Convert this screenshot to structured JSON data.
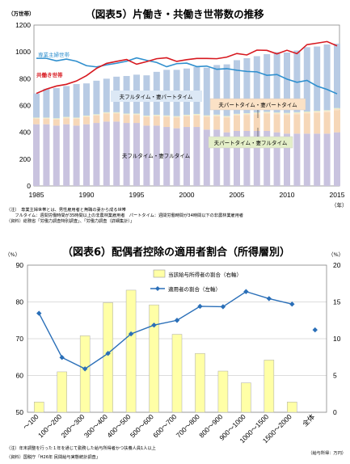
{
  "chart_data": [
    {
      "type": "bar",
      "title": "（図表5）片働き・共働き世帯数の推移",
      "ylabel": "（万世帯）",
      "xlabel": "（年）",
      "ylim": [
        0,
        1200
      ],
      "yticks": [
        0,
        200,
        400,
        600,
        800,
        1000,
        1200
      ],
      "xticks": [
        1985,
        1990,
        1995,
        2000,
        2005,
        2010,
        2015
      ],
      "stacked": true,
      "years": [
        1985,
        1986,
        1987,
        1988,
        1989,
        1990,
        1991,
        1992,
        1993,
        1994,
        1995,
        1996,
        1997,
        1998,
        1999,
        2000,
        2001,
        2002,
        2003,
        2004,
        2005,
        2006,
        2007,
        2008,
        2009,
        2010,
        2011,
        2012,
        2013,
        2014,
        2015
      ],
      "series": [
        {
          "name": "夫フルタイム・妻フルタイム",
          "color": "#c9c3df",
          "values": [
            460,
            460,
            450,
            460,
            450,
            460,
            470,
            480,
            480,
            470,
            470,
            450,
            450,
            440,
            430,
            440,
            440,
            420,
            420,
            400,
            410,
            410,
            410,
            410,
            400,
            390,
            390,
            390,
            390,
            390,
            400
          ]
        },
        {
          "name": "夫フルタイム・妻パートタイム",
          "color": "#f6d7b8",
          "values": [
            40,
            40,
            45,
            45,
            50,
            55,
            55,
            60,
            60,
            60,
            60,
            65,
            70,
            75,
            80,
            80,
            85,
            95,
            100,
            110,
            115,
            120,
            125,
            130,
            135,
            140,
            145,
            150,
            155,
            160,
            165
          ]
        },
        {
          "name": "夫パートタイム・妻パートタイム",
          "color": "#fbe2c6",
          "values": [
            5,
            5,
            5,
            5,
            5,
            5,
            5,
            5,
            5,
            5,
            5,
            5,
            6,
            6,
            6,
            6,
            7,
            7,
            7,
            7,
            8,
            8,
            8,
            8,
            8,
            9,
            9,
            9,
            9,
            9,
            10
          ]
        },
        {
          "name": "夫パートタイム・妻フルタイム",
          "color": "#e4efc8",
          "values": [
            5,
            5,
            5,
            5,
            5,
            5,
            5,
            5,
            5,
            5,
            5,
            5,
            5,
            5,
            5,
            5,
            5,
            5,
            5,
            5,
            5,
            5,
            5,
            5,
            5,
            6,
            6,
            6,
            6,
            6,
            6
          ]
        },
        {
          "name": "",
          "color": "#b8cbe4",
          "values": [
            180,
            215,
            225,
            230,
            250,
            240,
            250,
            250,
            265,
            280,
            290,
            300,
            320,
            340,
            345,
            345,
            350,
            355,
            370,
            385,
            400,
            410,
            420,
            430,
            450,
            450,
            460,
            480,
            480,
            490,
            480
          ]
        }
      ],
      "lines": [
        {
          "name": "専業主婦世帯",
          "color": "#2f8fce",
          "values": [
            952,
            952,
            933,
            946,
            930,
            897,
            888,
            903,
            915,
            930,
            955,
            937,
            921,
            889,
            912,
            916,
            890,
            894,
            870,
            875,
            863,
            854,
            851,
            825,
            831,
            797,
            773,
            787,
            745,
            720,
            687
          ]
        },
        {
          "name": "共働き世帯",
          "color": "#d7181f",
          "values": [
            690,
            722,
            745,
            758,
            783,
            823,
            877,
            914,
            929,
            943,
            908,
            927,
            949,
            956,
            929,
            942,
            951,
            951,
            949,
            961,
            988,
            977,
            1013,
            1011,
            985,
            1012,
            987,
            1054,
            1065,
            1077,
            1045
          ]
        }
      ],
      "annotations": [
        "夫フルタイム・妻パートタイム",
        "夫パートタイム・妻パートタイム",
        "夫パートタイム・妻フルタイム",
        "夫フルタイム・妻フルタイム"
      ],
      "notes": [
        "（注）　専業主婦世帯とは、男性雇用者と無職の妻から成る世帯",
        "　　フルタイム：週間労働時間が35時間以上の非農林業雇用者　パートタイム：週間労働時間が34時間以下の非農林業雇用者",
        "（資料）総務省「労働力調査特別調査」、「労働力調査（詳細集計）」"
      ]
    },
    {
      "type": "bar",
      "title": "（図表6）配偶者控除の適用者割合（所得層別）",
      "ylabel": "（%）",
      "ylabel_right": "（%）",
      "ylim": [
        50,
        90
      ],
      "yticks": [
        50,
        60,
        70,
        80,
        90
      ],
      "ylim_right": [
        0,
        20
      ],
      "yticks_right": [
        0,
        5,
        10,
        15,
        20
      ],
      "categories": [
        "～100",
        "100～200",
        "200～300",
        "300～400",
        "400～500",
        "500～600",
        "600～700",
        "700～800",
        "800～900",
        "900～1000",
        "1000～1500",
        "1500～2000",
        "全体"
      ],
      "series": [
        {
          "name": "当該給与所得者の割合（右軸）",
          "color": "#ffffa6",
          "axis": "right",
          "values": [
            1.4,
            5.5,
            10.4,
            14.9,
            16.6,
            14.6,
            10.6,
            8,
            5.6,
            4,
            7.1,
            1.4,
            null
          ]
        }
      ],
      "lines": [
        {
          "name": "適用者の割合（左軸）",
          "color": "#2a6fb8",
          "axis": "left",
          "values": [
            76.9,
            64.9,
            61.8,
            66,
            71.3,
            73.7,
            75,
            78.8,
            78.7,
            82.8,
            80.9,
            79.4,
            72.4
          ]
        }
      ],
      "notes": [
        "（注）年末調整を行った１年を通じて勤務した給与所得者かつ扶養人員1人以上",
        "（資料）国税庁「H26年 民間給与実態統計調査」"
      ],
      "unit_note": "（給与所得：万円）"
    }
  ]
}
